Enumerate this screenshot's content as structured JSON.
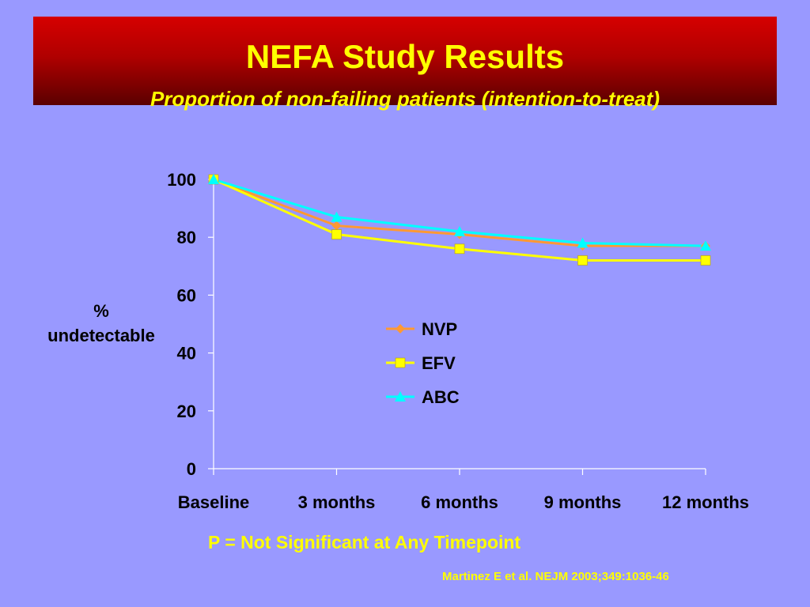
{
  "slide": {
    "title": "NEFA Study Results",
    "subtitle": "Proportion of non-failing patients (intention-to-treat)",
    "footnote": "P = Not Significant at Any Timepoint",
    "citation": "Martinez E et  al. NEJM 2003;349:1036-46"
  },
  "chart_data": {
    "type": "line",
    "title": "",
    "xlabel": "",
    "ylabel": "% undetectable",
    "ylabel_lines": [
      "%",
      "undetectable"
    ],
    "categories": [
      "Baseline",
      "3 months",
      "6 months",
      "9 months",
      "12 months"
    ],
    "ylim": [
      0,
      100
    ],
    "yticks": [
      0,
      20,
      40,
      60,
      80,
      100
    ],
    "grid": false,
    "legend_position": "center",
    "series": [
      {
        "name": "NVP",
        "values": [
          100,
          84,
          81,
          77,
          77
        ],
        "color": "#ff9933",
        "marker": "diamond"
      },
      {
        "name": "EFV",
        "values": [
          100,
          81,
          76,
          72,
          72
        ],
        "color": "#ffff00",
        "marker": "square"
      },
      {
        "name": "ABC",
        "values": [
          100,
          87,
          82,
          78,
          77
        ],
        "color": "#00ffff",
        "marker": "triangle"
      }
    ]
  }
}
